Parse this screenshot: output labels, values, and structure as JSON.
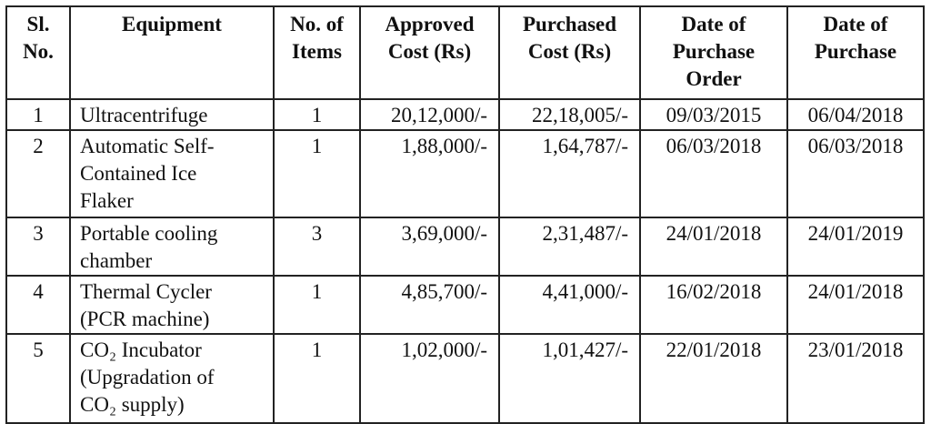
{
  "table": {
    "header": [
      "Sl. No.",
      "Equipment",
      "No. of Items",
      "Approved Cost (Rs)",
      "Purchased Cost (Rs)",
      "Date of Purchase Order",
      "Date of Purchase"
    ],
    "rows": [
      [
        "1",
        "Ultracentrifuge",
        "1",
        "20,12,000/-",
        "22,18,005/-",
        "09/03/2015",
        "06/04/2018"
      ],
      [
        "2",
        "Automatic Self-Contained Ice Flaker",
        "1",
        "1,88,000/-",
        "1,64,787/-",
        "06/03/2018",
        "06/03/2018"
      ],
      [
        "3",
        "Portable cooling chamber",
        "3",
        "3,69,000/-",
        "2,31,487/-",
        "24/01/2018",
        "24/01/2019"
      ],
      [
        "4",
        "Thermal Cycler (PCR machine)",
        "1",
        "4,85,700/-",
        "4,41,000/-",
        "16/02/2018",
        "24/01/2018"
      ],
      [
        "5",
        "CO₂ Incubator (Upgradation of CO₂ supply)",
        "1",
        "1,02,000/-",
        "1,01,427/-",
        "22/01/2018",
        "23/01/2018"
      ]
    ]
  }
}
